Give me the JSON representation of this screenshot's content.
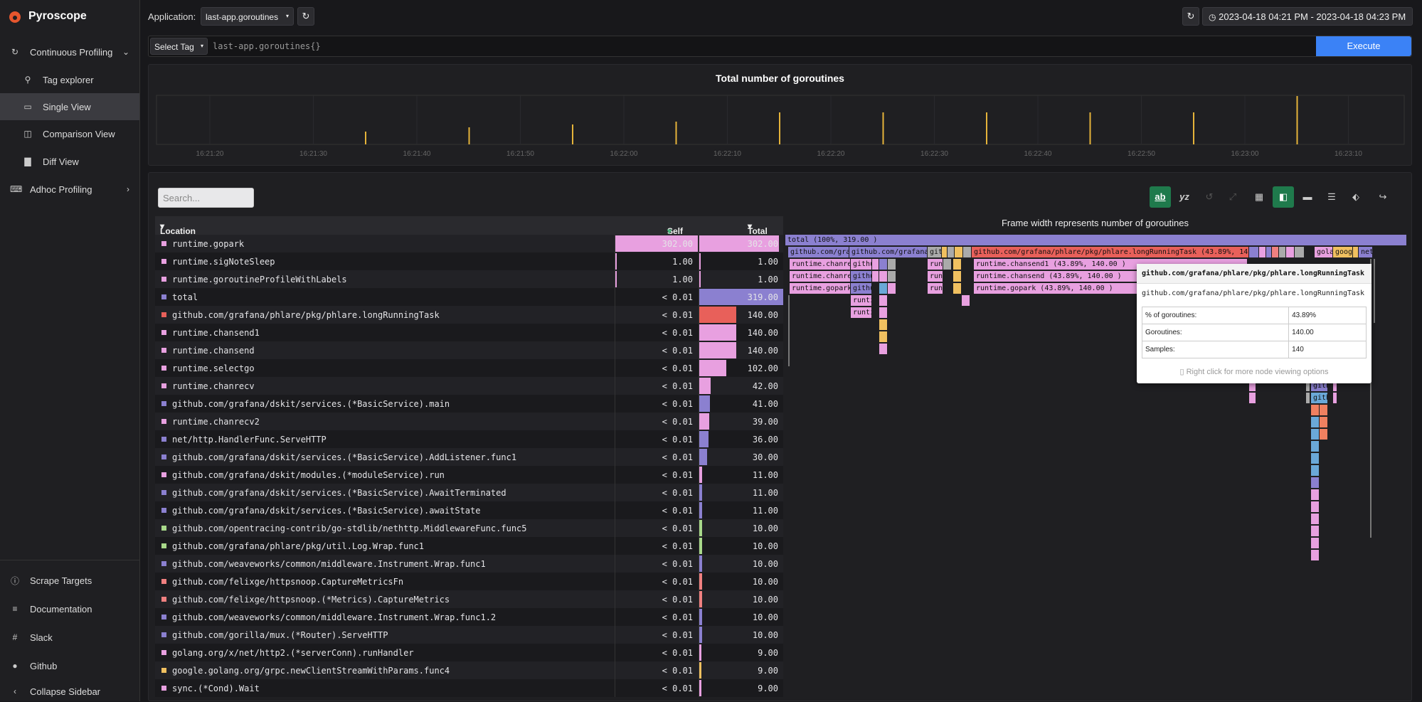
{
  "app": {
    "name": "Pyroscope"
  },
  "sidebar": {
    "items": [
      {
        "label": "Continuous Profiling",
        "icon": "refresh-icon"
      },
      {
        "label": "Tag explorer",
        "icon": "search-icon"
      },
      {
        "label": "Single View",
        "icon": "window-icon"
      },
      {
        "label": "Comparison View",
        "icon": "columns-icon"
      },
      {
        "label": "Diff View",
        "icon": "chart-icon"
      },
      {
        "label": "Adhoc Profiling",
        "icon": "terminal-icon"
      }
    ],
    "bottom": [
      {
        "label": "Scrape Targets",
        "icon": "info-icon"
      },
      {
        "label": "Documentation",
        "icon": "document-icon"
      },
      {
        "label": "Slack",
        "icon": "slack-icon"
      },
      {
        "label": "Github",
        "icon": "github-icon"
      },
      {
        "label": "Collapse Sidebar",
        "icon": "chevron-left-icon"
      }
    ]
  },
  "header": {
    "application_label": "Application:",
    "application_value": "last-app.goroutines",
    "time_range": "2023-04-18 04:21 PM - 2023-04-18 04:23 PM"
  },
  "query": {
    "select_tag": "Select Tag",
    "value": "last-app.goroutines{}",
    "execute": "Execute"
  },
  "timeline": {
    "title": "Total number of goroutines",
    "ticks": [
      "16:21:20",
      "16:21:30",
      "16:21:40",
      "16:21:50",
      "16:22:00",
      "16:22:10",
      "16:22:20",
      "16:22:30",
      "16:22:40",
      "16:22:50",
      "16:23:00",
      "16:23:10"
    ],
    "accent": "#e5b33a"
  },
  "toolbar": {
    "search_placeholder": "Search..."
  },
  "table": {
    "headers": {
      "location": "Location",
      "self": "Self",
      "total": "Total"
    },
    "rows": [
      {
        "name": "runtime.gopark",
        "self": "302.00",
        "total": "302.00",
        "color": "#e8a0e0"
      },
      {
        "name": "runtime.sigNoteSleep",
        "self": "1.00",
        "total": "1.00",
        "color": "#e8a0e0"
      },
      {
        "name": "runtime.goroutineProfileWithLabels",
        "self": "1.00",
        "total": "1.00",
        "color": "#e8a0e0"
      },
      {
        "name": "total",
        "self": "< 0.01",
        "total": "319.00",
        "color": "#8b80d0"
      },
      {
        "name": "github.com/grafana/phlare/pkg/phlare.longRunningTask",
        "self": "< 0.01",
        "total": "140.00",
        "color": "#e8605a"
      },
      {
        "name": "runtime.chansend1",
        "self": "< 0.01",
        "total": "140.00",
        "color": "#e8a0e0"
      },
      {
        "name": "runtime.chansend",
        "self": "< 0.01",
        "total": "140.00",
        "color": "#e8a0e0"
      },
      {
        "name": "runtime.selectgo",
        "self": "< 0.01",
        "total": "102.00",
        "color": "#e8a0e0"
      },
      {
        "name": "runtime.chanrecv",
        "self": "< 0.01",
        "total": "42.00",
        "color": "#e8a0e0"
      },
      {
        "name": "github.com/grafana/dskit/services.(*BasicService).main",
        "self": "< 0.01",
        "total": "41.00",
        "color": "#8b80d0"
      },
      {
        "name": "runtime.chanrecv2",
        "self": "< 0.01",
        "total": "39.00",
        "color": "#e8a0e0"
      },
      {
        "name": "net/http.HandlerFunc.ServeHTTP",
        "self": "< 0.01",
        "total": "36.00",
        "color": "#8b80d0"
      },
      {
        "name": "github.com/grafana/dskit/services.(*BasicService).AddListener.func1",
        "self": "< 0.01",
        "total": "30.00",
        "color": "#8b80d0"
      },
      {
        "name": "github.com/grafana/dskit/modules.(*moduleService).run",
        "self": "< 0.01",
        "total": "11.00",
        "color": "#e8a0e0"
      },
      {
        "name": "github.com/grafana/dskit/services.(*BasicService).AwaitTerminated",
        "self": "< 0.01",
        "total": "11.00",
        "color": "#8b80d0"
      },
      {
        "name": "github.com/grafana/dskit/services.(*BasicService).awaitState",
        "self": "< 0.01",
        "total": "11.00",
        "color": "#8b80d0"
      },
      {
        "name": "github.com/opentracing-contrib/go-stdlib/nethttp.MiddlewareFunc.func5",
        "self": "< 0.01",
        "total": "10.00",
        "color": "#a8d88a"
      },
      {
        "name": "github.com/grafana/phlare/pkg/util.Log.Wrap.func1",
        "self": "< 0.01",
        "total": "10.00",
        "color": "#a8d88a"
      },
      {
        "name": "github.com/weaveworks/common/middleware.Instrument.Wrap.func1",
        "self": "< 0.01",
        "total": "10.00",
        "color": "#8b80d0"
      },
      {
        "name": "github.com/felixge/httpsnoop.CaptureMetricsFn",
        "self": "< 0.01",
        "total": "10.00",
        "color": "#f08080"
      },
      {
        "name": "github.com/felixge/httpsnoop.(*Metrics).CaptureMetrics",
        "self": "< 0.01",
        "total": "10.00",
        "color": "#f08080"
      },
      {
        "name": "github.com/weaveworks/common/middleware.Instrument.Wrap.func1.2",
        "self": "< 0.01",
        "total": "10.00",
        "color": "#8b80d0"
      },
      {
        "name": "github.com/gorilla/mux.(*Router).ServeHTTP",
        "self": "< 0.01",
        "total": "10.00",
        "color": "#8b80d0"
      },
      {
        "name": "golang.org/x/net/http2.(*serverConn).runHandler",
        "self": "< 0.01",
        "total": "9.00",
        "color": "#e8a0e0"
      },
      {
        "name": "google.golang.org/grpc.newClientStreamWithParams.func4",
        "self": "< 0.01",
        "total": "9.00",
        "color": "#f0c060"
      },
      {
        "name": "sync.(*Cond).Wait",
        "self": "< 0.01",
        "total": "9.00",
        "color": "#e8a0e0"
      }
    ]
  },
  "flamegraph": {
    "title": "Frame width represents number of goroutines",
    "labels": {
      "root": "total (100%, 319.00 )",
      "f1": "github.com/grafa",
      "f2": "github.com/grafana/d",
      "f3": "git",
      "f4": "github.com/grafana/phlare/pkg/phlare.longRunningTask (43.89%, 140.00 )",
      "f5": "gola",
      "f6": "goog",
      "f7": "net",
      "f8": "runtime.chanrec",
      "f9": "githu",
      "f10": "run",
      "f11": "runtime.chansend1 (43.89%, 140.00 )",
      "f12": "runtime.chanrec",
      "f13": "githu",
      "f14": "run",
      "f15": "runtime.chansend (43.89%, 140.00 )",
      "f16": "runtime.gopark",
      "f17": "githu",
      "f18": "run",
      "f19": "runtime.gopark (43.89%, 140.00 )",
      "f20": "runti",
      "f21": "runti",
      "f22": "gith",
      "f23": "gith"
    }
  },
  "tooltip": {
    "title": "github.com/grafana/phlare/pkg/phlare.longRunningTask",
    "subtitle": "github.com/grafana/phlare/pkg/phlare.longRunningTask",
    "rows": [
      {
        "label": "% of goroutines:",
        "value": "43.89%"
      },
      {
        "label": "Goroutines:",
        "value": "140.00"
      },
      {
        "label": "Samples:",
        "value": "140"
      }
    ],
    "footer": "Right click for more node viewing options"
  }
}
